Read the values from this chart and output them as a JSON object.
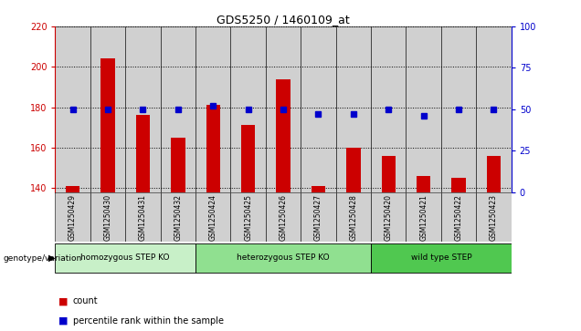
{
  "title": "GDS5250 / 1460109_at",
  "samples": [
    "GSM1250429",
    "GSM1250430",
    "GSM1250431",
    "GSM1250432",
    "GSM1250424",
    "GSM1250425",
    "GSM1250426",
    "GSM1250427",
    "GSM1250428",
    "GSM1250420",
    "GSM1250421",
    "GSM1250422",
    "GSM1250423"
  ],
  "counts": [
    141,
    204,
    176,
    165,
    181,
    171,
    194,
    141,
    160,
    156,
    146,
    145,
    156
  ],
  "percentiles": [
    50,
    50,
    50,
    50,
    52,
    50,
    50,
    47,
    47,
    50,
    46,
    50,
    50
  ],
  "groups": [
    {
      "label": "homozygous STEP KO",
      "start": 0,
      "end": 4,
      "color": "#c8f0c8"
    },
    {
      "label": "heterozygous STEP KO",
      "start": 4,
      "end": 9,
      "color": "#90e090"
    },
    {
      "label": "wild type STEP",
      "start": 9,
      "end": 13,
      "color": "#50c850"
    }
  ],
  "ylim_left": [
    138,
    220
  ],
  "ylim_right": [
    0,
    100
  ],
  "yticks_left": [
    140,
    160,
    180,
    200,
    220
  ],
  "yticks_right": [
    0,
    25,
    50,
    75,
    100
  ],
  "bar_color": "#cc0000",
  "dot_color": "#0000cc",
  "bg_color": "#ffffff",
  "grid_color": "#000000",
  "left_tick_color": "#cc0000",
  "right_tick_color": "#0000cc",
  "legend_count_color": "#cc0000",
  "legend_pct_color": "#0000cc",
  "cell_bg": "#d0d0d0",
  "group_label_bg": "#d0d0d0",
  "genotype_label": "genotype/variation"
}
